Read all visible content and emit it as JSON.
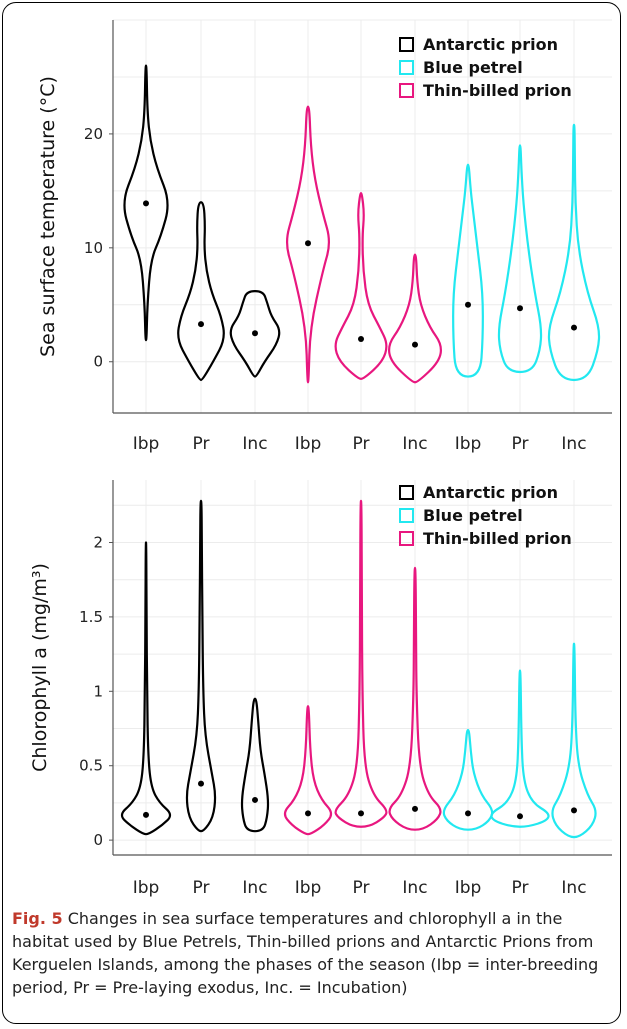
{
  "chart_data": [
    {
      "type": "violin",
      "ylabel": "Sea surface temperature (°C)",
      "ylim": [
        -4.5,
        30
      ],
      "yticks": [
        0,
        10,
        20
      ],
      "ytick_labels": [
        "0",
        "10",
        "20"
      ],
      "grid": true,
      "legend_position": "top-right",
      "legend": [
        {
          "name": "Antarctic prion",
          "color": "#000000"
        },
        {
          "name": "Blue petrel",
          "color": "#22e8f0"
        },
        {
          "name": "Thin-billed prion",
          "color": "#e8177f"
        }
      ],
      "categories": [
        "Ibp",
        "Pr",
        "Inc",
        "Ibp",
        "Pr",
        "Inc",
        "Ibp",
        "Pr",
        "Inc"
      ],
      "groups": [
        {
          "name": "Antarctic prion",
          "color": "#000000",
          "phases": [
            {
              "phase": "Ibp",
              "mean": 13.9,
              "min": 1.9,
              "max": 26,
              "profile": [
                [
                  1.9,
                  0.02
                ],
                [
                  5,
                  0.05
                ],
                [
                  9,
                  0.18
                ],
                [
                  11,
                  0.55
                ],
                [
                  14,
                  0.9
                ],
                [
                  17,
                  0.4
                ],
                [
                  19.5,
                  0.15
                ],
                [
                  22,
                  0.05
                ],
                [
                  26,
                  0.02
                ]
              ]
            },
            {
              "phase": "Pr",
              "mean": 3.3,
              "min": -1.6,
              "max": 14,
              "profile": [
                [
                  -1.6,
                  0.05
                ],
                [
                  0,
                  0.45
                ],
                [
                  2,
                  0.9
                ],
                [
                  4,
                  0.75
                ],
                [
                  6,
                  0.4
                ],
                [
                  8,
                  0.2
                ],
                [
                  10,
                  0.12
                ],
                [
                  12,
                  0.15
                ],
                [
                  14,
                  0.1
                ]
              ]
            },
            {
              "phase": "Inc",
              "mean": 2.5,
              "min": -1.3,
              "max": 6.2,
              "profile": [
                [
                  -1.3,
                  0.05
                ],
                [
                  0,
                  0.35
                ],
                [
                  1.5,
                  0.8
                ],
                [
                  2.8,
                  0.95
                ],
                [
                  4,
                  0.6
                ],
                [
                  5.2,
                  0.45
                ],
                [
                  6.2,
                  0.3
                ]
              ]
            }
          ]
        },
        {
          "name": "Thin-billed prion",
          "color": "#e8177f",
          "phases": [
            {
              "phase": "Ibp",
              "mean": 10.4,
              "min": -1.8,
              "max": 22.4,
              "profile": [
                [
                  -1.8,
                  0.02
                ],
                [
                  3,
                  0.08
                ],
                [
                  8,
                  0.55
                ],
                [
                  10.5,
                  0.85
                ],
                [
                  13,
                  0.55
                ],
                [
                  16,
                  0.25
                ],
                [
                  19,
                  0.1
                ],
                [
                  22.4,
                  0.05
                ]
              ]
            },
            {
              "phase": "Pr",
              "mean": 2,
              "min": -1.5,
              "max": 14.8,
              "profile": [
                [
                  -1.5,
                  0.1
                ],
                [
                  0,
                  0.8
                ],
                [
                  1.5,
                  1.0
                ],
                [
                  3,
                  0.7
                ],
                [
                  5,
                  0.25
                ],
                [
                  8,
                  0.08
                ],
                [
                  11,
                  0.05
                ],
                [
                  13,
                  0.12
                ],
                [
                  14.8,
                  0.03
                ]
              ]
            },
            {
              "phase": "Inc",
              "mean": 1.5,
              "min": -1.8,
              "max": 9.4,
              "profile": [
                [
                  -1.8,
                  0.1
                ],
                [
                  0,
                  0.9
                ],
                [
                  1.5,
                  1.0
                ],
                [
                  3,
                  0.55
                ],
                [
                  5,
                  0.2
                ],
                [
                  7,
                  0.08
                ],
                [
                  9.4,
                  0.04
                ]
              ]
            }
          ]
        },
        {
          "name": "Blue petrel",
          "color": "#22e8f0",
          "phases": [
            {
              "phase": "Ibp",
              "mean": 5,
              "min": -1.3,
              "max": 17.3,
              "profile": [
                [
                  -1.3,
                  0.45
                ],
                [
                  2,
                  0.55
                ],
                [
                  6,
                  0.55
                ],
                [
                  10,
                  0.35
                ],
                [
                  13,
                  0.2
                ],
                [
                  15,
                  0.1
                ],
                [
                  17.3,
                  0.03
                ]
              ]
            },
            {
              "phase": "Pr",
              "mean": 4.7,
              "min": -0.9,
              "max": 19,
              "profile": [
                [
                  -0.9,
                  0.45
                ],
                [
                  1,
                  0.75
                ],
                [
                  3,
                  0.8
                ],
                [
                  6,
                  0.55
                ],
                [
                  10,
                  0.3
                ],
                [
                  14,
                  0.12
                ],
                [
                  17,
                  0.05
                ],
                [
                  19,
                  0.02
                ]
              ]
            },
            {
              "phase": "Inc",
              "mean": 3,
              "min": -1.6,
              "max": 20.8,
              "profile": [
                [
                  -1.6,
                  0.5
                ],
                [
                  1,
                  0.9
                ],
                [
                  3,
                  0.95
                ],
                [
                  6,
                  0.5
                ],
                [
                  10,
                  0.15
                ],
                [
                  14,
                  0.05
                ],
                [
                  18,
                  0.03
                ],
                [
                  20.8,
                  0.02
                ]
              ]
            }
          ]
        }
      ]
    },
    {
      "type": "violin",
      "ylabel": "Chlorophyll a (mg/m³)",
      "ylim": [
        -0.1,
        2.42
      ],
      "yticks": [
        0,
        0.5,
        1,
        1.5,
        2
      ],
      "ytick_labels": [
        "0",
        "0.5",
        "1",
        "1.5",
        "2"
      ],
      "grid": true,
      "legend_position": "top-right",
      "legend": [
        {
          "name": "Antarctic prion",
          "color": "#000000"
        },
        {
          "name": "Blue petrel",
          "color": "#22e8f0"
        },
        {
          "name": "Thin-billed prion",
          "color": "#e8177f"
        }
      ],
      "categories": [
        "Ibp",
        "Pr",
        "Inc",
        "Ibp",
        "Pr",
        "Inc",
        "Ibp",
        "Pr",
        "Inc"
      ],
      "groups": [
        {
          "name": "Antarctic prion",
          "color": "#000000",
          "phases": [
            {
              "phase": "Ibp",
              "mean": 0.17,
              "min": 0.04,
              "max": 2,
              "profile": [
                [
                  0.04,
                  0.1
                ],
                [
                  0.1,
                  0.6
                ],
                [
                  0.17,
                  1.0
                ],
                [
                  0.25,
                  0.5
                ],
                [
                  0.35,
                  0.2
                ],
                [
                  0.55,
                  0.08
                ],
                [
                  1,
                  0.04
                ],
                [
                  1.5,
                  0.02
                ],
                [
                  2,
                  0.01
                ]
              ]
            },
            {
              "phase": "Pr",
              "mean": 0.38,
              "min": 0.06,
              "max": 2.28,
              "profile": [
                [
                  0.06,
                  0.1
                ],
                [
                  0.15,
                  0.45
                ],
                [
                  0.3,
                  0.55
                ],
                [
                  0.45,
                  0.4
                ],
                [
                  0.7,
                  0.15
                ],
                [
                  1,
                  0.08
                ],
                [
                  1.5,
                  0.05
                ],
                [
                  2,
                  0.03
                ],
                [
                  2.28,
                  0.02
                ]
              ]
            },
            {
              "phase": "Inc",
              "mean": 0.27,
              "min": 0.06,
              "max": 0.95,
              "profile": [
                [
                  0.06,
                  0.3
                ],
                [
                  0.15,
                  0.45
                ],
                [
                  0.27,
                  0.5
                ],
                [
                  0.45,
                  0.35
                ],
                [
                  0.6,
                  0.2
                ],
                [
                  0.8,
                  0.12
                ],
                [
                  0.95,
                  0.05
                ]
              ]
            }
          ]
        },
        {
          "name": "Thin-billed prion",
          "color": "#e8177f",
          "phases": [
            {
              "phase": "Ibp",
              "mean": 0.18,
              "min": 0.04,
              "max": 0.9,
              "profile": [
                [
                  0.04,
                  0.1
                ],
                [
                  0.1,
                  0.6
                ],
                [
                  0.18,
                  0.95
                ],
                [
                  0.27,
                  0.5
                ],
                [
                  0.4,
                  0.2
                ],
                [
                  0.6,
                  0.08
                ],
                [
                  0.9,
                  0.03
                ]
              ]
            },
            {
              "phase": "Pr",
              "mean": 0.18,
              "min": 0.09,
              "max": 2.28,
              "profile": [
                [
                  0.09,
                  0.3
                ],
                [
                  0.15,
                  0.85
                ],
                [
                  0.2,
                  1.0
                ],
                [
                  0.3,
                  0.45
                ],
                [
                  0.5,
                  0.12
                ],
                [
                  1,
                  0.05
                ],
                [
                  1.6,
                  0.03
                ],
                [
                  2.28,
                  0.02
                ]
              ]
            },
            {
              "phase": "Inc",
              "mean": 0.21,
              "min": 0.07,
              "max": 1.83,
              "profile": [
                [
                  0.07,
                  0.3
                ],
                [
                  0.14,
                  0.85
                ],
                [
                  0.21,
                  1.0
                ],
                [
                  0.3,
                  0.5
                ],
                [
                  0.5,
                  0.15
                ],
                [
                  1,
                  0.05
                ],
                [
                  1.4,
                  0.04
                ],
                [
                  1.83,
                  0.02
                ]
              ]
            }
          ]
        },
        {
          "name": "Blue petrel",
          "color": "#22e8f0",
          "phases": [
            {
              "phase": "Ibp",
              "mean": 0.18,
              "min": 0.07,
              "max": 0.74,
              "profile": [
                [
                  0.07,
                  0.3
                ],
                [
                  0.13,
                  0.8
                ],
                [
                  0.2,
                  0.95
                ],
                [
                  0.3,
                  0.5
                ],
                [
                  0.45,
                  0.2
                ],
                [
                  0.6,
                  0.1
                ],
                [
                  0.74,
                  0.04
                ]
              ]
            },
            {
              "phase": "Pr",
              "mean": 0.16,
              "min": 0.09,
              "max": 1.14,
              "profile": [
                [
                  0.09,
                  0.3
                ],
                [
                  0.13,
                  1.0
                ],
                [
                  0.18,
                  1.1
                ],
                [
                  0.25,
                  0.45
                ],
                [
                  0.4,
                  0.12
                ],
                [
                  0.7,
                  0.05
                ],
                [
                  1.14,
                  0.02
                ]
              ]
            },
            {
              "phase": "Inc",
              "mean": 0.2,
              "min": 0.02,
              "max": 1.32,
              "profile": [
                [
                  0.02,
                  0.2
                ],
                [
                  0.1,
                  0.7
                ],
                [
                  0.2,
                  0.85
                ],
                [
                  0.3,
                  0.5
                ],
                [
                  0.5,
                  0.15
                ],
                [
                  0.8,
                  0.05
                ],
                [
                  1.32,
                  0.02
                ]
              ]
            }
          ]
        }
      ]
    }
  ],
  "caption": {
    "label": "Fig. 5",
    "text": " Changes in sea surface temperatures and chlorophyll a in the habitat used by Blue Petrels, Thin-billed prions and Antarctic Prions from Kerguelen Islands, among the phases of the season (Ibp = inter-breeding period, Pr = Pre-laying exodus, Inc. = Incubation)"
  }
}
